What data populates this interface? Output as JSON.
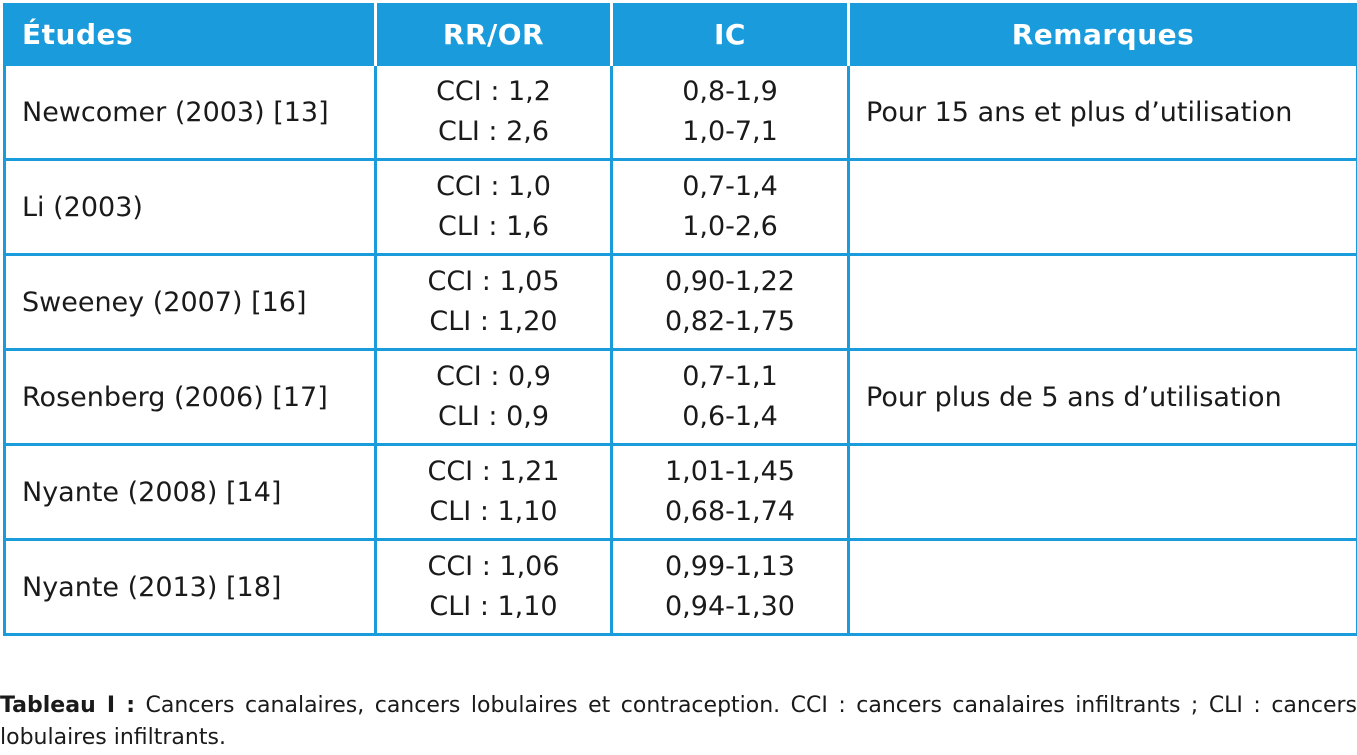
{
  "table": {
    "headers": [
      "Études",
      "RR/OR",
      "IC",
      "Remarques"
    ],
    "rows": [
      {
        "study": "Newcomer (2003) [13]",
        "rr": [
          "CCI : 1,2",
          "CLI : 2,6"
        ],
        "ic": [
          "0,8-1,9",
          "1,0-7,1"
        ],
        "remark": "Pour 15 ans et plus d’utilisation"
      },
      {
        "study": "Li (2003)",
        "rr": [
          "CCI : 1,0",
          "CLI : 1,6"
        ],
        "ic": [
          "0,7-1,4",
          "1,0-2,6"
        ],
        "remark": ""
      },
      {
        "study": "Sweeney (2007) [16]",
        "rr": [
          "CCI : 1,05",
          "CLI : 1,20"
        ],
        "ic": [
          "0,90-1,22",
          "0,82-1,75"
        ],
        "remark": ""
      },
      {
        "study": "Rosenberg (2006) [17]",
        "rr": [
          "CCI : 0,9",
          "CLI : 0,9"
        ],
        "ic": [
          "0,7-1,1",
          "0,6-1,4"
        ],
        "remark": "Pour plus de 5 ans d’utilisation"
      },
      {
        "study": "Nyante (2008) [14]",
        "rr": [
          "CCI : 1,21",
          "CLI : 1,10"
        ],
        "ic": [
          "1,01-1,45",
          "0,68-1,74"
        ],
        "remark": ""
      },
      {
        "study": "Nyante (2013) [18]",
        "rr": [
          "CCI : 1,06",
          "CLI : 1,10"
        ],
        "ic": [
          "0,99-1,13",
          "0,94-1,30"
        ],
        "remark": ""
      }
    ]
  },
  "caption": {
    "label": "Tableau I :",
    "text": " Cancers canalaires, cancers lobulaires et contraception. CCI : cancers canalaires infiltrants ; CLI : cancers lobulaires infiltrants."
  },
  "colors": {
    "header_bg": "#1a9bdc",
    "header_text": "#ffffff",
    "border": "#1a9bdc"
  }
}
